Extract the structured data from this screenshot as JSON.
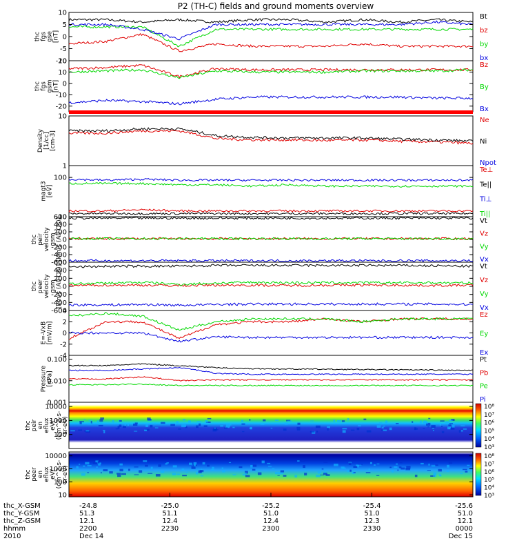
{
  "title": "P2 (TH-C) fields and ground moments overview",
  "colors": {
    "black": "#000000",
    "red": "#e00000",
    "green": "#00d800",
    "blue": "#0000e0"
  },
  "chart_data": [
    {
      "type": "line",
      "id": "fgs-gse",
      "ylabel": [
        "thc",
        "fgs",
        "gse",
        "[nT]"
      ],
      "ylim": [
        -10,
        10
      ],
      "yticks": [
        10,
        5,
        0,
        -5,
        -10
      ],
      "series": [
        {
          "name": "Bt",
          "color": "black",
          "values": [
            7,
            7,
            6,
            7,
            6,
            7,
            7,
            6,
            7,
            6,
            7,
            6
          ]
        },
        {
          "name": "bz",
          "color": "red",
          "values": [
            -3,
            -2,
            1,
            -6,
            -3,
            -4,
            -4,
            -4,
            -3,
            -4,
            -4,
            -4
          ]
        },
        {
          "name": "by",
          "color": "green",
          "values": [
            4,
            4,
            4,
            -4,
            3,
            3,
            3,
            3,
            3,
            3,
            3,
            3
          ]
        },
        {
          "name": "bx",
          "color": "blue",
          "values": [
            5,
            5,
            3,
            -1,
            5,
            5,
            5,
            5,
            5,
            5,
            6,
            5
          ]
        }
      ]
    },
    {
      "type": "line",
      "id": "fgs-gsm",
      "ylabel": [
        "thc",
        "fgs",
        "gsm",
        "[nT]"
      ],
      "ylim": [
        -25,
        20
      ],
      "yticks": [
        20,
        10,
        0,
        -10,
        -20
      ],
      "series": [
        {
          "name": "Bz",
          "color": "red",
          "values": [
            13,
            14,
            16,
            6,
            13,
            12,
            12,
            12,
            12,
            12,
            12,
            12
          ]
        },
        {
          "name": "By",
          "color": "green",
          "values": [
            10,
            11,
            12,
            5,
            11,
            10,
            10,
            10,
            11,
            11,
            11,
            12
          ]
        },
        {
          "name": "Bx",
          "color": "blue",
          "values": [
            -17,
            -15,
            -16,
            -18,
            -14,
            -12,
            -12,
            -12,
            -12,
            -12,
            -13,
            -13
          ]
        }
      ]
    },
    {
      "type": "line",
      "id": "density",
      "scale": "log",
      "ylabel": [
        "Density",
        "[1/cc]",
        "[cm-3]"
      ],
      "ylim": [
        1,
        10
      ],
      "yticks": [
        10,
        1
      ],
      "series": [
        {
          "name": "Ne",
          "color": "red",
          "values": [
            4.5,
            4.5,
            5,
            5,
            3.5,
            3.3,
            3.3,
            3.2,
            3.3,
            3.1,
            3,
            2.8
          ]
        },
        {
          "name": "Ni",
          "color": "black",
          "values": [
            5,
            5,
            5.5,
            5.5,
            4,
            3.7,
            3.6,
            3.6,
            3.6,
            3.4,
            3.3,
            3.1
          ]
        },
        {
          "name": "Npot",
          "color": "blue",
          "values": []
        }
      ]
    },
    {
      "type": "line",
      "id": "temperature",
      "scale": "log",
      "ylabel": [
        "magt3",
        "[eV]"
      ],
      "ylim": [
        10,
        200
      ],
      "yticks": [
        100,
        10
      ],
      "series": [
        {
          "name": "Te⊥",
          "color": "red",
          "values": [
            14,
            14,
            15,
            14,
            14,
            14,
            14,
            14,
            14,
            14,
            14,
            14
          ]
        },
        {
          "name": "Te||",
          "color": "black",
          "values": [
            12,
            12,
            12,
            12,
            12,
            12,
            12,
            12,
            12,
            12,
            12,
            12
          ]
        },
        {
          "name": "Ti⊥",
          "color": "blue",
          "values": [
            90,
            85,
            90,
            85,
            85,
            85,
            85,
            85,
            85,
            85,
            85,
            85
          ]
        },
        {
          "name": "Ti||",
          "color": "green",
          "values": [
            70,
            70,
            70,
            65,
            65,
            60,
            65,
            60,
            60,
            60,
            60,
            60
          ]
        }
      ]
    },
    {
      "type": "line",
      "id": "peir-velocity",
      "ylabel": [
        "thc",
        "peir",
        "velocity",
        "gsm",
        "[km/s (All Qs)]"
      ],
      "ylim": [
        -600,
        600
      ],
      "yticks": [
        600,
        400,
        200,
        0,
        -200,
        -400,
        -600
      ],
      "series": [
        {
          "name": "Vt",
          "color": "black",
          "values": [
            560,
            560,
            560,
            560,
            560,
            560,
            560,
            560,
            560,
            560,
            560,
            560
          ]
        },
        {
          "name": "Vz",
          "color": "red",
          "values": [
            20,
            20,
            20,
            20,
            20,
            20,
            20,
            20,
            20,
            20,
            20,
            20
          ]
        },
        {
          "name": "Vy",
          "color": "green",
          "values": [
            20,
            20,
            20,
            20,
            20,
            20,
            20,
            20,
            20,
            20,
            20,
            20
          ]
        },
        {
          "name": "Vx",
          "color": "blue",
          "values": [
            -560,
            -560,
            -560,
            -560,
            -560,
            -560,
            -560,
            -560,
            -560,
            -560,
            -560,
            -560
          ]
        }
      ]
    },
    {
      "type": "line",
      "id": "peer-velocity",
      "ylabel": [
        "thc",
        "peer",
        "velocity",
        "gsm",
        "[km/s (All Qs)]"
      ],
      "ylim": [
        -600,
        600
      ],
      "yticks": [
        600,
        400,
        200,
        0,
        -200,
        -400,
        -600
      ],
      "series": [
        {
          "name": "Vt",
          "color": "black",
          "values": [
            480,
            500,
            500,
            500,
            520,
            520,
            520,
            520,
            520,
            520,
            510,
            500
          ]
        },
        {
          "name": "Vz",
          "color": "red",
          "values": [
            20,
            30,
            30,
            20,
            30,
            30,
            20,
            30,
            30,
            30,
            20,
            30
          ]
        },
        {
          "name": "Vy",
          "color": "green",
          "values": [
            60,
            80,
            100,
            50,
            80,
            100,
            90,
            90,
            90,
            90,
            90,
            80
          ]
        },
        {
          "name": "Vx",
          "color": "blue",
          "values": [
            -460,
            -460,
            -450,
            -470,
            -450,
            -440,
            -440,
            -440,
            -440,
            -440,
            -440,
            -450
          ]
        }
      ]
    },
    {
      "type": "line",
      "id": "efield",
      "ylabel": [
        "E=-VxB",
        "[mV/m]"
      ],
      "ylim": [
        -4,
        4
      ],
      "yticks": [
        4,
        2,
        0,
        -2,
        -4
      ],
      "series": [
        {
          "name": "Ez",
          "color": "red",
          "values": [
            -1,
            2,
            2,
            -1,
            1.5,
            2,
            2,
            2.5,
            2,
            2.5,
            2.5,
            2.5
          ]
        },
        {
          "name": "Ey",
          "color": "green",
          "values": [
            3,
            3.5,
            3,
            0.5,
            2,
            2.5,
            2.5,
            2.5,
            2,
            2.5,
            2.5,
            2.5
          ]
        },
        {
          "name": "Ex",
          "color": "blue",
          "values": [
            0,
            0,
            0,
            -1.5,
            -0.7,
            -0.8,
            -0.8,
            -0.8,
            -0.8,
            -0.8,
            -0.8,
            -0.8
          ]
        }
      ]
    },
    {
      "type": "line",
      "id": "pressure",
      "scale": "log",
      "ylabel": [
        "Pressure",
        "[nPa]"
      ],
      "ylim": [
        0.001,
        0.15
      ],
      "yticks": [
        0.1,
        0.01,
        0.001
      ],
      "ytick_labels": [
        "0.100",
        "0.010",
        "0.001"
      ],
      "series": [
        {
          "name": "Pt",
          "color": "black",
          "values": [
            0.05,
            0.05,
            0.06,
            0.05,
            0.04,
            0.036,
            0.035,
            0.034,
            0.033,
            0.032,
            0.031,
            0.03
          ]
        },
        {
          "name": "Pb",
          "color": "red",
          "values": [
            0.012,
            0.012,
            0.015,
            0.01,
            0.011,
            0.011,
            0.011,
            0.011,
            0.011,
            0.011,
            0.011,
            0.011
          ]
        },
        {
          "name": "Pe",
          "color": "green",
          "values": [
            0.0065,
            0.0065,
            0.007,
            0.006,
            0.006,
            0.006,
            0.006,
            0.006,
            0.006,
            0.006,
            0.006,
            0.006
          ]
        },
        {
          "name": "Pi",
          "color": "blue",
          "values": [
            0.03,
            0.03,
            0.035,
            0.04,
            0.022,
            0.02,
            0.02,
            0.02,
            0.02,
            0.02,
            0.02,
            0.02
          ]
        }
      ]
    },
    {
      "type": "heatmap",
      "id": "peir-eflux",
      "scale": "log",
      "ylabel": [
        "thc",
        "peir",
        "en",
        "eflux",
        "eV/",
        "(cm^2-s-",
        "sr-eV)"
      ],
      "ylim": [
        10,
        20000
      ],
      "yticks": [
        10000,
        1000,
        100
      ],
      "ytick_labels": [
        "10000",
        "1000",
        "100"
      ]
    },
    {
      "type": "heatmap",
      "id": "peer-eflux",
      "scale": "log",
      "ylabel": [
        "thc",
        "peer",
        "en",
        "eflux",
        "eV/",
        "(cm^2-s-",
        "sr-eV)"
      ],
      "ylim": [
        7,
        20000
      ],
      "yticks": [
        10000,
        1000,
        100,
        10
      ],
      "ytick_labels": [
        "10000",
        "1000",
        "100",
        "10"
      ]
    }
  ],
  "colorbars": [
    {
      "id": "cb1",
      "labels": [
        "10⁸",
        "10⁷",
        "10⁶",
        "10⁵",
        "10⁴",
        "10³"
      ]
    },
    {
      "id": "cb2",
      "labels": [
        "10⁸",
        "10⁷",
        "10⁶",
        "10⁵",
        "10⁴",
        "10³"
      ]
    }
  ],
  "x_axis": {
    "row_labels": [
      "thc_X-GSM",
      "thc_Y-GSM",
      "thc_Z-GSM",
      "hhmm",
      "2010"
    ],
    "ticks": [
      {
        "x": "-24.8",
        "y": "51.3",
        "z": "12.1",
        "hhmm": "2200",
        "date": "Dec 14"
      },
      {
        "x": "-25.0",
        "y": "51.1",
        "z": "12.4",
        "hhmm": "2230",
        "date": ""
      },
      {
        "x": "-25.2",
        "y": "51.0",
        "z": "12.4",
        "hhmm": "2300",
        "date": ""
      },
      {
        "x": "-25.4",
        "y": "51.0",
        "z": "12.3",
        "hhmm": "2330",
        "date": ""
      },
      {
        "x": "-25.6",
        "y": "51.0",
        "z": "12.1",
        "hhmm": "0000",
        "date": "Dec 15"
      }
    ]
  }
}
